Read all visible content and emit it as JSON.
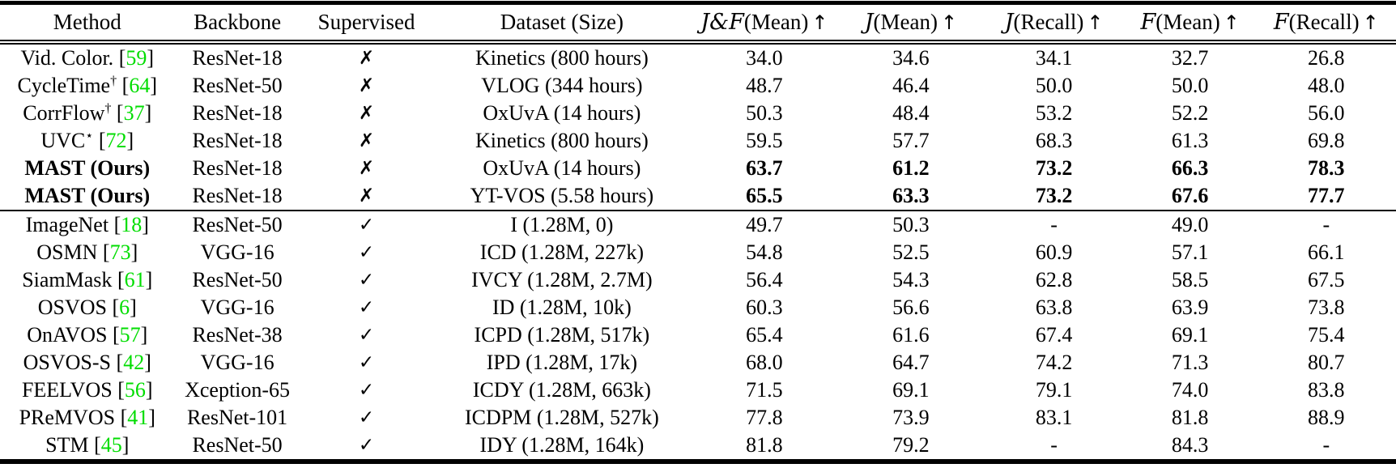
{
  "colors": {
    "citation_green": "#00dd00",
    "text": "#000000",
    "background": "#ffffff"
  },
  "table": {
    "headers": [
      {
        "label": "Method"
      },
      {
        "label": "Backbone"
      },
      {
        "label": "Supervised"
      },
      {
        "label": "Dataset (Size)"
      },
      {
        "script": "J&F",
        "rest": "(Mean)",
        "arrow": "↑"
      },
      {
        "script": "J",
        "rest": "(Mean)",
        "arrow": "↑"
      },
      {
        "script": "J",
        "rest": "(Recall)",
        "arrow": "↑"
      },
      {
        "script": "F",
        "rest": "(Mean)",
        "arrow": "↑"
      },
      {
        "script": "F",
        "rest": "(Recall)",
        "arrow": "↑"
      }
    ],
    "sections": [
      {
        "rows": [
          {
            "method": "Vid. Color.",
            "sup": "",
            "ref": "59",
            "bold": false,
            "backbone": "ResNet-18",
            "supervised": "✗",
            "dataset": "Kinetics (800 hours)",
            "values": [
              "34.0",
              "34.6",
              "34.1",
              "32.7",
              "26.8"
            ],
            "bold_values": false
          },
          {
            "method": "CycleTime",
            "sup": "†",
            "ref": "64",
            "bold": false,
            "backbone": "ResNet-50",
            "supervised": "✗",
            "dataset": "VLOG (344 hours)",
            "values": [
              "48.7",
              "46.4",
              "50.0",
              "50.0",
              "48.0"
            ],
            "bold_values": false
          },
          {
            "method": "CorrFlow",
            "sup": "†",
            "ref": "37",
            "bold": false,
            "backbone": "ResNet-18",
            "supervised": "✗",
            "dataset": "OxUvA (14 hours)",
            "values": [
              "50.3",
              "48.4",
              "53.2",
              "52.2",
              "56.0"
            ],
            "bold_values": false
          },
          {
            "method": "UVC",
            "sup": "⋆",
            "ref": "72",
            "bold": false,
            "backbone": "ResNet-18",
            "supervised": "✗",
            "dataset": "Kinetics (800 hours)",
            "values": [
              "59.5",
              "57.7",
              "68.3",
              "61.3",
              "69.8"
            ],
            "bold_values": false
          },
          {
            "method": "MAST (Ours)",
            "sup": "",
            "ref": "",
            "bold": true,
            "backbone": "ResNet-18",
            "supervised": "✗",
            "dataset": "OxUvA (14 hours)",
            "values": [
              "63.7",
              "61.2",
              "73.2",
              "66.3",
              "78.3"
            ],
            "bold_values": true
          },
          {
            "method": "MAST (Ours)",
            "sup": "",
            "ref": "",
            "bold": true,
            "backbone": "ResNet-18",
            "supervised": "✗",
            "dataset": "YT-VOS (5.58 hours)",
            "values": [
              "65.5",
              "63.3",
              "73.2",
              "67.6",
              "77.7"
            ],
            "bold_values": true
          }
        ]
      },
      {
        "rows": [
          {
            "method": "ImageNet",
            "sup": "",
            "ref": "18",
            "bold": false,
            "backbone": "ResNet-50",
            "supervised": "✓",
            "dataset": "I (1.28M, 0)",
            "values": [
              "49.7",
              "50.3",
              "-",
              "49.0",
              "-"
            ],
            "bold_values": false
          },
          {
            "method": "OSMN",
            "sup": "",
            "ref": "73",
            "bold": false,
            "backbone": "VGG-16",
            "supervised": "✓",
            "dataset": "ICD (1.28M, 227k)",
            "values": [
              "54.8",
              "52.5",
              "60.9",
              "57.1",
              "66.1"
            ],
            "bold_values": false
          },
          {
            "method": "SiamMask",
            "sup": "",
            "ref": "61",
            "bold": false,
            "backbone": "ResNet-50",
            "supervised": "✓",
            "dataset": "IVCY (1.28M, 2.7M)",
            "values": [
              "56.4",
              "54.3",
              "62.8",
              "58.5",
              "67.5"
            ],
            "bold_values": false
          },
          {
            "method": "OSVOS",
            "sup": "",
            "ref": "6",
            "bold": false,
            "backbone": "VGG-16",
            "supervised": "✓",
            "dataset": "ID (1.28M, 10k)",
            "values": [
              "60.3",
              "56.6",
              "63.8",
              "63.9",
              "73.8"
            ],
            "bold_values": false
          },
          {
            "method": "OnAVOS",
            "sup": "",
            "ref": "57",
            "bold": false,
            "backbone": "ResNet-38",
            "supervised": "✓",
            "dataset": "ICPD (1.28M, 517k)",
            "values": [
              "65.4",
              "61.6",
              "67.4",
              "69.1",
              "75.4"
            ],
            "bold_values": false
          },
          {
            "method": "OSVOS-S",
            "sup": "",
            "ref": "42",
            "bold": false,
            "backbone": "VGG-16",
            "supervised": "✓",
            "dataset": "IPD (1.28M, 17k)",
            "values": [
              "68.0",
              "64.7",
              "74.2",
              "71.3",
              "80.7"
            ],
            "bold_values": false
          },
          {
            "method": "FEELVOS",
            "sup": "",
            "ref": "56",
            "bold": false,
            "backbone": "Xception-65",
            "supervised": "✓",
            "dataset": "ICDY (1.28M, 663k)",
            "values": [
              "71.5",
              "69.1",
              "79.1",
              "74.0",
              "83.8"
            ],
            "bold_values": false
          },
          {
            "method": "PReMVOS",
            "sup": "",
            "ref": "41",
            "bold": false,
            "backbone": "ResNet-101",
            "supervised": "✓",
            "dataset": "ICDPM (1.28M, 527k)",
            "values": [
              "77.8",
              "73.9",
              "83.1",
              "81.8",
              "88.9"
            ],
            "bold_values": false
          },
          {
            "method": "STM",
            "sup": "",
            "ref": "45",
            "bold": false,
            "backbone": "ResNet-50",
            "supervised": "✓",
            "dataset": "IDY (1.28M, 164k)",
            "values": [
              "81.8",
              "79.2",
              "-",
              "84.3",
              "-"
            ],
            "bold_values": false
          }
        ]
      }
    ]
  }
}
